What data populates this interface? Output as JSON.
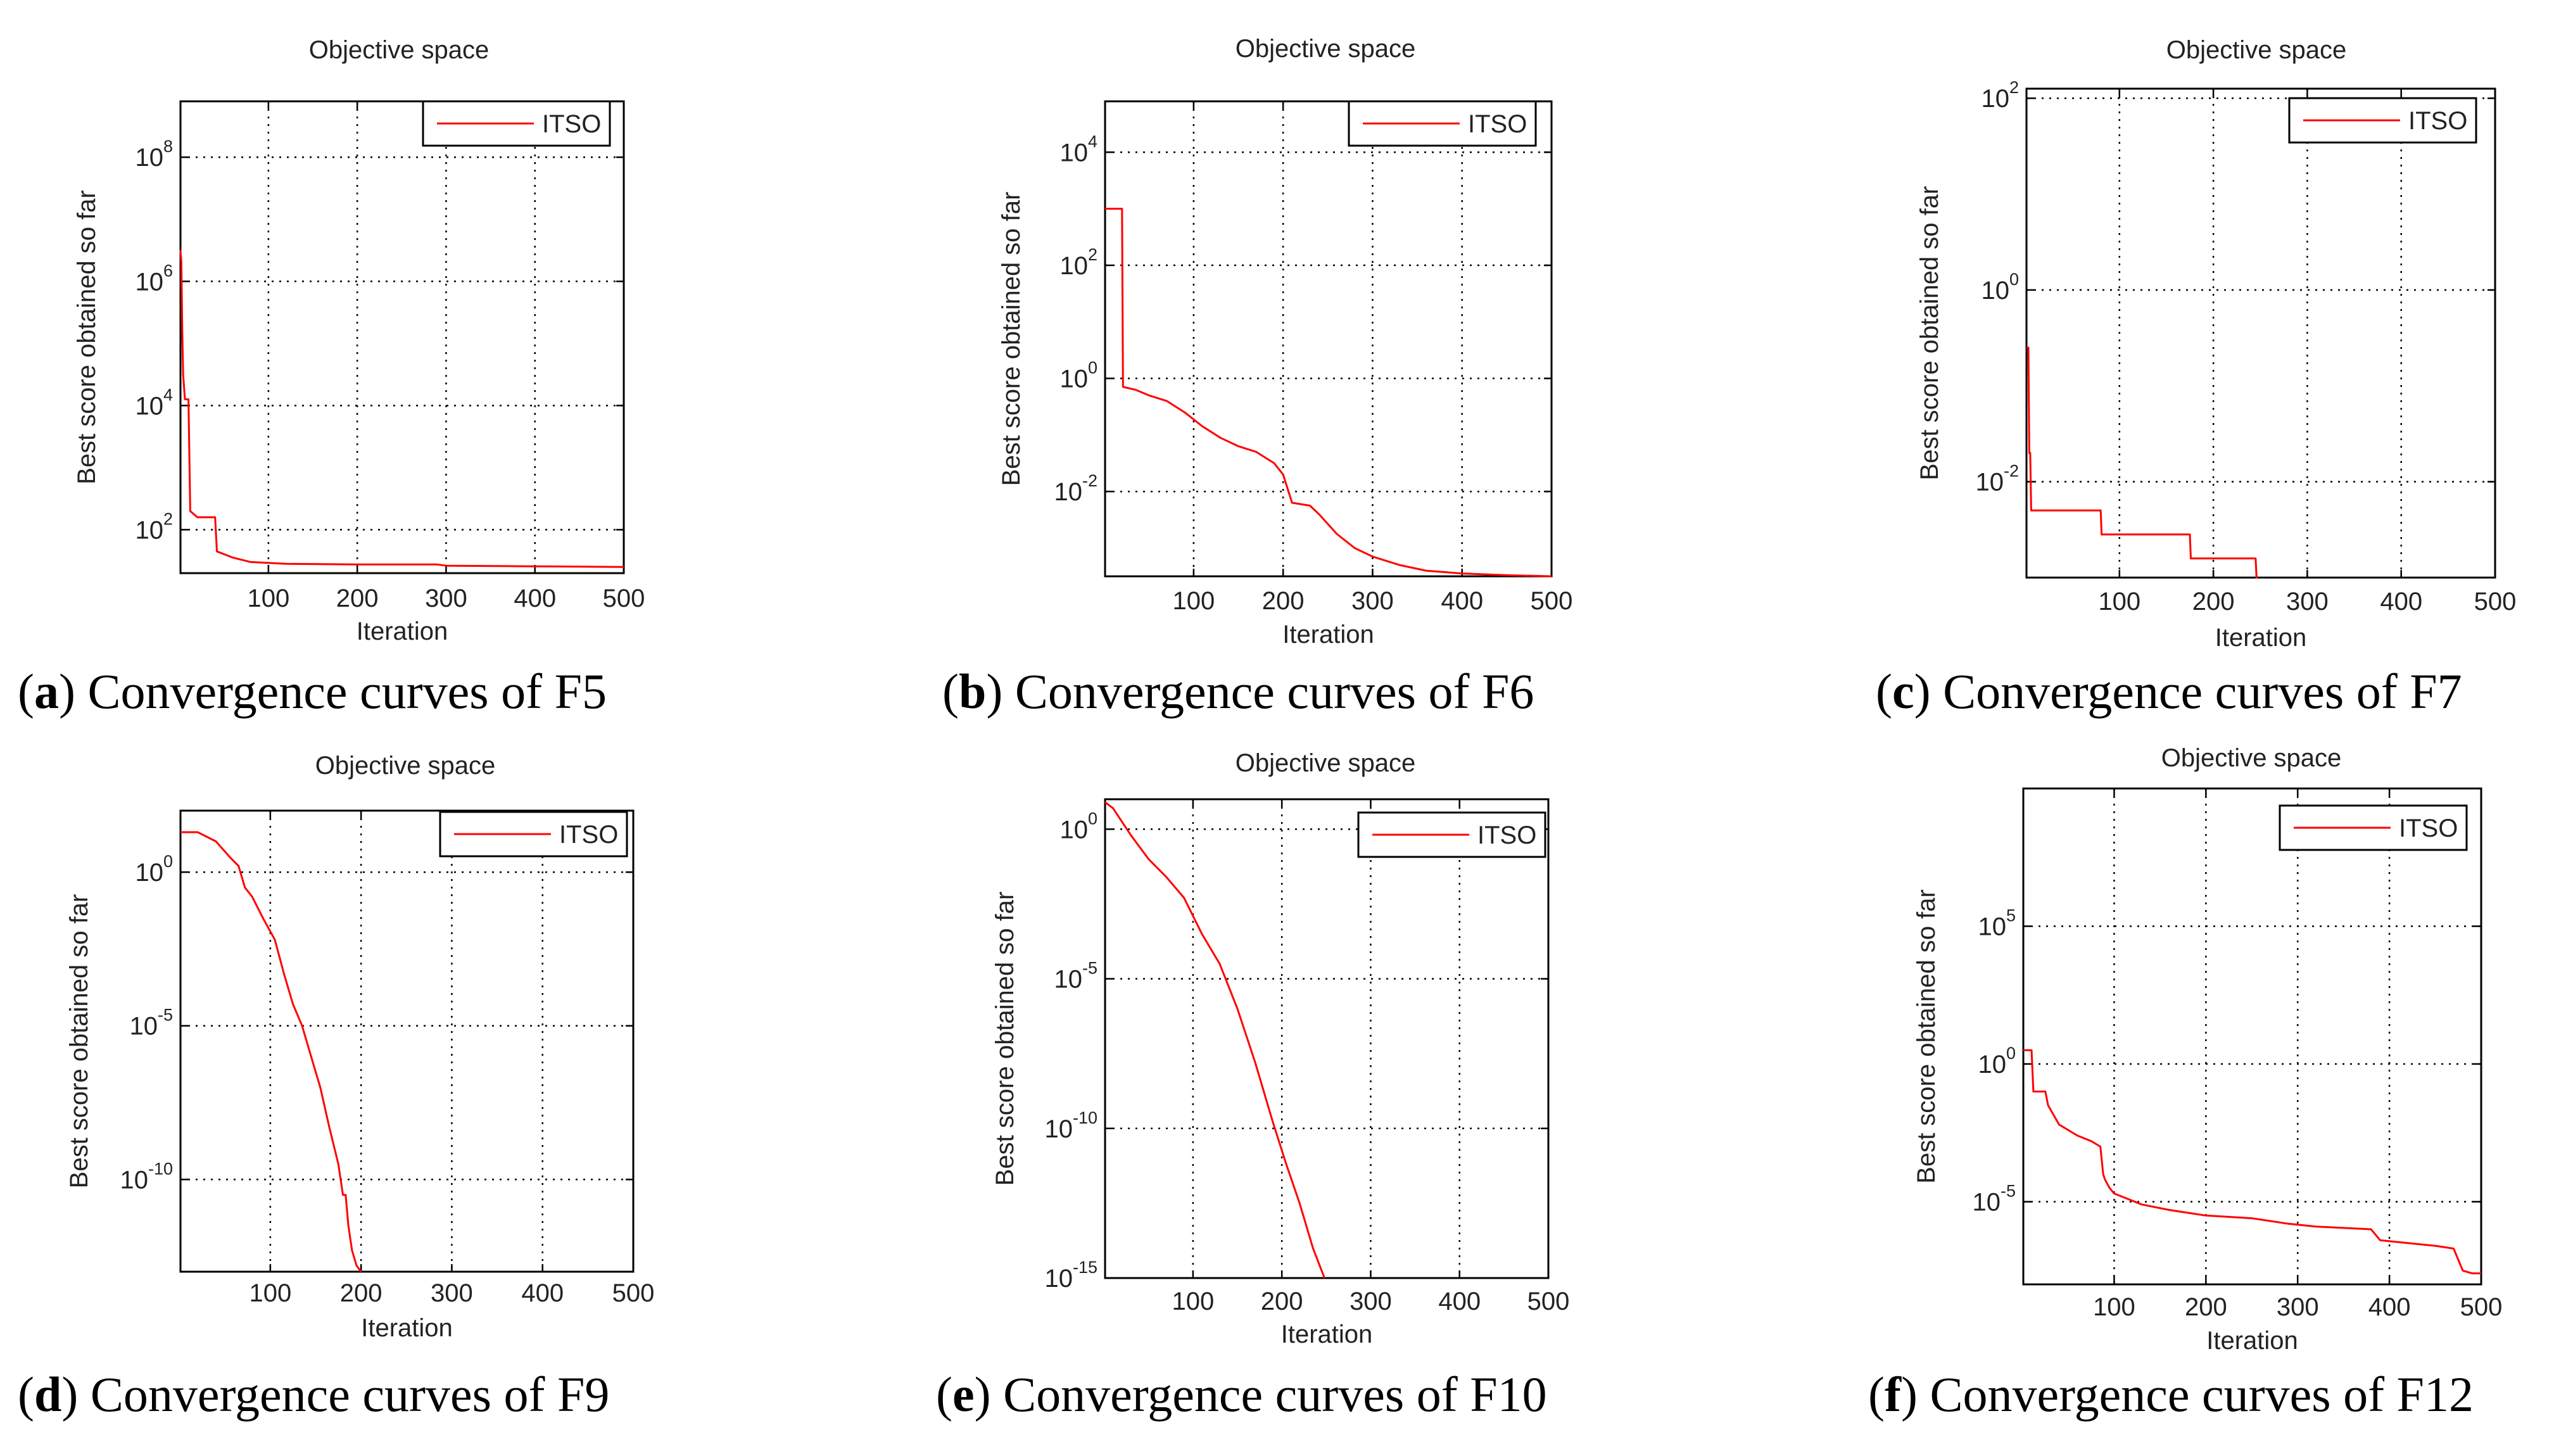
{
  "figure_colors": {
    "series": "#ff0000",
    "axes": "#000000",
    "background": "#ffffff"
  },
  "chart_data": [
    {
      "id": "a",
      "type": "line",
      "y_scale": "log",
      "title": "Objective space",
      "xlabel": "Iteration",
      "ylabel": "Best score obtained so far",
      "xlim": [
        1,
        500
      ],
      "ylim_log10": [
        1.3,
        8.9
      ],
      "xticks": [
        100,
        200,
        300,
        400,
        500
      ],
      "yticks": [
        {
          "base": "10",
          "exp": "2",
          "log": 2
        },
        {
          "base": "10",
          "exp": "4",
          "log": 4
        },
        {
          "base": "10",
          "exp": "6",
          "log": 6
        },
        {
          "base": "10",
          "exp": "8",
          "log": 8
        }
      ],
      "legend": "ITSO",
      "caption_letter": "a",
      "caption_text": " Convergence curves of F5",
      "series": [
        {
          "name": "ITSO",
          "x": [
            1,
            2,
            3,
            4,
            6,
            8,
            10,
            12,
            20,
            30,
            40,
            42,
            60,
            80,
            120,
            200,
            290,
            300,
            400,
            500
          ],
          "y_log10": [
            6.5,
            6.3,
            5.2,
            4.5,
            4.1,
            4.1,
            4.1,
            2.3,
            2.2,
            2.2,
            2.2,
            1.65,
            1.55,
            1.48,
            1.45,
            1.44,
            1.44,
            1.42,
            1.41,
            1.4
          ]
        }
      ]
    },
    {
      "id": "b",
      "type": "line",
      "y_scale": "log",
      "title": "Objective space",
      "xlabel": "Iteration",
      "ylabel": "Best score obtained so far",
      "xlim": [
        1,
        500
      ],
      "ylim_log10": [
        -3.5,
        4.9
      ],
      "xticks": [
        100,
        200,
        300,
        400,
        500
      ],
      "yticks": [
        {
          "base": "10",
          "exp": "-2",
          "log": -2
        },
        {
          "base": "10",
          "exp": "0",
          "log": 0
        },
        {
          "base": "10",
          "exp": "2",
          "log": 2
        },
        {
          "base": "10",
          "exp": "4",
          "log": 4
        }
      ],
      "legend": "ITSO",
      "caption_letter": "b",
      "caption_text": " Convergence curves of F6",
      "series": [
        {
          "name": "ITSO",
          "x": [
            1,
            20,
            21,
            35,
            50,
            70,
            90,
            110,
            130,
            150,
            170,
            190,
            200,
            210,
            230,
            240,
            260,
            280,
            300,
            330,
            360,
            400,
            450,
            500
          ],
          "y_log10": [
            3.0,
            3.0,
            -0.15,
            -0.2,
            -0.3,
            -0.4,
            -0.6,
            -0.85,
            -1.05,
            -1.2,
            -1.3,
            -1.5,
            -1.7,
            -2.2,
            -2.25,
            -2.4,
            -2.75,
            -3.0,
            -3.15,
            -3.3,
            -3.4,
            -3.45,
            -3.48,
            -3.5
          ]
        }
      ]
    },
    {
      "id": "c",
      "type": "line",
      "y_scale": "log",
      "title": "Objective space",
      "xlabel": "Iteration",
      "ylabel": "Best score obtained so far",
      "xlim": [
        1,
        500
      ],
      "ylim_log10": [
        -3.0,
        2.1
      ],
      "xticks": [
        100,
        200,
        300,
        400,
        500
      ],
      "yticks": [
        {
          "base": "10",
          "exp": "-2",
          "log": -2
        },
        {
          "base": "10",
          "exp": "0",
          "log": 0
        },
        {
          "base": "10",
          "exp": "2",
          "log": 2
        }
      ],
      "legend": "ITSO",
      "caption_letter": "c",
      "caption_text": " Convergence curves of F7",
      "series": [
        {
          "name": "ITSO",
          "x": [
            1,
            3,
            4,
            5,
            6,
            8,
            80,
            81,
            175,
            176,
            245,
            246,
            247
          ],
          "y_log10": [
            -0.6,
            -0.6,
            -1.7,
            -1.7,
            -2.3,
            -2.3,
            -2.3,
            -2.55,
            -2.55,
            -2.8,
            -2.8,
            -3.0,
            -3.0
          ]
        }
      ]
    },
    {
      "id": "d",
      "type": "line",
      "y_scale": "log",
      "title": "Objective space",
      "xlabel": "Iteration",
      "ylabel": "Best score obtained so far",
      "xlim": [
        1,
        500
      ],
      "ylim_log10": [
        -13,
        2.0
      ],
      "xticks": [
        100,
        200,
        300,
        400,
        500
      ],
      "yticks": [
        {
          "base": "10",
          "exp": "-10",
          "log": -10
        },
        {
          "base": "10",
          "exp": "-5",
          "log": -5
        },
        {
          "base": "10",
          "exp": "0",
          "log": 0
        }
      ],
      "legend": "ITSO",
      "caption_letter": "d",
      "caption_text": " Convergence curves of F9",
      "series": [
        {
          "name": "ITSO",
          "x": [
            1,
            20,
            40,
            55,
            65,
            72,
            80,
            92,
            105,
            115,
            125,
            135,
            145,
            155,
            165,
            175,
            180,
            183,
            186,
            190,
            195,
            200
          ],
          "y_log10": [
            1.3,
            1.3,
            1.0,
            0.5,
            0.2,
            -0.5,
            -0.8,
            -1.5,
            -2.2,
            -3.3,
            -4.3,
            -5.0,
            -6.0,
            -7.0,
            -8.3,
            -9.5,
            -10.5,
            -10.5,
            -11.5,
            -12.3,
            -12.8,
            -13.0
          ]
        }
      ]
    },
    {
      "id": "e",
      "type": "line",
      "y_scale": "log",
      "title": "Objective space",
      "xlabel": "Iteration",
      "ylabel": "Best score obtained so far",
      "xlim": [
        1,
        500
      ],
      "ylim_log10": [
        -15,
        1.0
      ],
      "xticks": [
        100,
        200,
        300,
        400,
        500
      ],
      "yticks": [
        {
          "base": "10",
          "exp": "-15",
          "log": -15
        },
        {
          "base": "10",
          "exp": "-10",
          "log": -10
        },
        {
          "base": "10",
          "exp": "-5",
          "log": -5
        },
        {
          "base": "10",
          "exp": "0",
          "log": 0
        }
      ],
      "legend": "ITSO",
      "caption_letter": "e",
      "caption_text": " Convergence curves of F10",
      "series": [
        {
          "name": "ITSO",
          "x": [
            1,
            10,
            30,
            50,
            70,
            90,
            110,
            130,
            150,
            170,
            190,
            205,
            220,
            235,
            248
          ],
          "y_log10": [
            0.9,
            0.7,
            -0.2,
            -1.0,
            -1.6,
            -2.3,
            -3.5,
            -4.5,
            -6.0,
            -7.8,
            -9.8,
            -11.2,
            -12.5,
            -14.0,
            -15.0
          ]
        }
      ]
    },
    {
      "id": "f",
      "type": "line",
      "y_scale": "log",
      "title": "Objective space",
      "xlabel": "Iteration",
      "ylabel": "Best score obtained so far",
      "xlim": [
        1,
        500
      ],
      "ylim_log10": [
        -8.0,
        10.0
      ],
      "xticks": [
        100,
        200,
        300,
        400,
        500
      ],
      "yticks": [
        {
          "base": "10",
          "exp": "-5",
          "log": -5
        },
        {
          "base": "10",
          "exp": "0",
          "log": 0
        },
        {
          "base": "10",
          "exp": "5",
          "log": 5
        }
      ],
      "legend": "ITSO",
      "caption_letter": "f",
      "caption_text": " Convergence curves of F12",
      "series": [
        {
          "name": "ITSO",
          "x": [
            1,
            10,
            12,
            25,
            28,
            40,
            50,
            60,
            75,
            85,
            88,
            90,
            95,
            100,
            130,
            160,
            200,
            250,
            290,
            320,
            380,
            390,
            420,
            450,
            470,
            480,
            490,
            500
          ],
          "y_log10": [
            0.5,
            0.5,
            -1.0,
            -1.0,
            -1.5,
            -2.2,
            -2.4,
            -2.6,
            -2.8,
            -3.0,
            -4.0,
            -4.2,
            -4.5,
            -4.7,
            -5.1,
            -5.3,
            -5.5,
            -5.6,
            -5.8,
            -5.9,
            -6.0,
            -6.4,
            -6.5,
            -6.6,
            -6.7,
            -7.5,
            -7.6,
            -7.6
          ]
        }
      ]
    }
  ]
}
